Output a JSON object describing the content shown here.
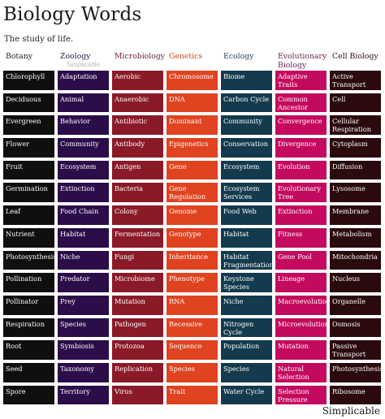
{
  "header": {
    "title": "Biology Words",
    "subtitle": "The study of life.",
    "watermark": "Simplicable",
    "brand": "Simplicable"
  },
  "columns": [
    {
      "name": "Botany",
      "head_color": "#222222",
      "cell_color": "#0f0f0f",
      "words": [
        "Chlorophyll",
        "Deciduous",
        "Evergreen",
        "Flower",
        "Fruit",
        "Germination",
        "Leaf",
        "Nutrient",
        "Photosynthesis",
        "Pollination",
        "Pollinator",
        "Respiration",
        "Root",
        "Seed",
        "Spore"
      ]
    },
    {
      "name": "Zoology",
      "head_color": "#2a1540",
      "cell_color": "#2b0d4a",
      "words": [
        "Adaptation",
        "Animal",
        "Behavior",
        "Community",
        "Ecosystem",
        "Extinction",
        "Food Chain",
        "Habitat",
        "Niche",
        "Predator",
        "Prey",
        "Species",
        "Symbiosis",
        "Taxonomy",
        "Territory"
      ]
    },
    {
      "name": "Microbiology",
      "head_color": "#6e1f2b",
      "cell_color": "#8a1a28",
      "words": [
        "Aerobic",
        "Anaerobic",
        "Antibiotic",
        "Antibody",
        "Antigen",
        "Bacteria",
        "Colony",
        "Fermentation",
        "Fungi",
        "Microbiome",
        "Mutation",
        "Pathogen",
        "Protozoa",
        "Replication",
        "Virus"
      ]
    },
    {
      "name": "Genetics",
      "head_color": "#d2461f",
      "cell_color": "#e04320",
      "words": [
        "Chromosome",
        "DNA",
        "Dominant",
        "Epigenetics",
        "Gene",
        "Gene Regulation",
        "Genome",
        "Genotype",
        "Inheritance",
        "Phenotype",
        "RNA",
        "Recessive",
        "Sequence",
        "Species",
        "Trait"
      ]
    },
    {
      "name": "Ecology",
      "head_color": "#1d4a5e",
      "cell_color": "#133a4d",
      "words": [
        "Biome",
        "Carbon Cycle",
        "Community",
        "Conservation",
        "Ecosystem",
        "Ecosystem Services",
        "Food Web",
        "Habitat",
        "Habitat Fragmentation",
        "Keystone Species",
        "Niche",
        "Nitrogen Cycle",
        "Population",
        "Species",
        "Water Cycle"
      ]
    },
    {
      "name": "Evolutionary Biology",
      "head_color": "#6a1f4e",
      "cell_color": "#c40a5e",
      "words": [
        "Adaptive Traits",
        "Common Ancestor",
        "Convergence",
        "Divergence",
        "Evolution",
        "Evolutionary Tree",
        "Extinction",
        "Fitness",
        "Gene Pool",
        "Lineage",
        "Macroevolution",
        "Microevolution",
        "Mutation",
        "Natural Selection",
        "Selection Pressure"
      ]
    },
    {
      "name": "Cell Biology",
      "head_color": "#2a0f10",
      "cell_color": "#2a0a0d",
      "words": [
        "Active Transport",
        "Cell",
        "Cellular Respiration",
        "Cytoplasm",
        "Diffusion",
        "Lysosome",
        "Membrane",
        "Metabolism",
        "Mitochondria",
        "Nucleus",
        "Organelle",
        "Osmosis",
        "Passive Transport",
        "Photosynthesis",
        "Ribosome"
      ]
    }
  ]
}
